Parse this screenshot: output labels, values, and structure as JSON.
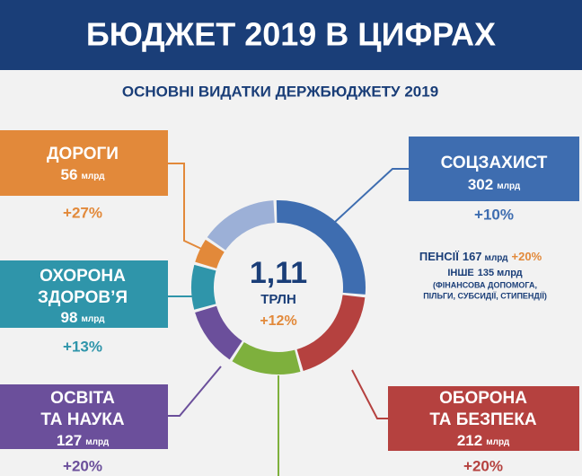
{
  "header": {
    "title": "БЮДЖЕТ 2019 В ЦИФРАХ"
  },
  "chart_data": {
    "type": "donut",
    "title": "ОСНОВНІ ВИДАТКИ ДЕРЖБЮДЖЕТУ 2019",
    "unit": "млрд",
    "categories": [
      "СОЦЗАХИСТ",
      "ОБОРОНА ТА БЕЗПЕКА",
      null,
      "ОСВІТА ТА НАУКА",
      "ОХОРОНА ЗДОРОВ’Я",
      "ДОРОГИ",
      null
    ],
    "values": [
      302,
      212,
      150,
      127,
      98,
      56,
      165
    ],
    "changes": [
      "+10%",
      "+20%",
      null,
      "+20%",
      "+13%",
      "+27%",
      null
    ],
    "colors": [
      "#3e6db0",
      "#b5413f",
      "#7eb03d",
      "#6b4f9b",
      "#2f95aa",
      "#e2893a",
      "#9cb0d7"
    ],
    "total": "1,11",
    "total_unit": "ТРЛН",
    "total_change": "+12%",
    "breakdown": [
      {
        "name": "ПЕНСІЇ",
        "value": 167,
        "change": "+20%"
      },
      {
        "name": "ІНШЕ",
        "value": 135,
        "note": [
          "(ФІНАНСОВА ДОПОМОГА,",
          "ПІЛЬГИ, СУБСИДІЇ, СТИПЕНДІЇ)"
        ]
      }
    ]
  }
}
